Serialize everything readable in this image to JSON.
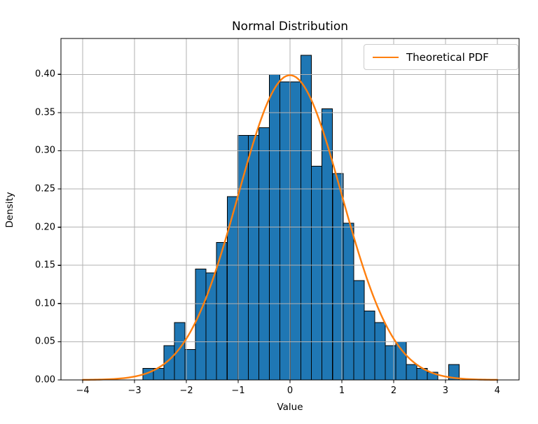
{
  "chart_data": {
    "type": "bar",
    "subtype": "histogram_with_pdf_overlay",
    "title": "Normal Distribution",
    "xlabel": "Value",
    "ylabel": "Density",
    "xlim": [
      -4.42,
      4.42
    ],
    "ylim": [
      0,
      0.447
    ],
    "grid": true,
    "xticks": {
      "values": [
        -4,
        -3,
        -2,
        -1,
        0,
        1,
        2,
        3,
        4
      ],
      "labels": [
        "−4",
        "−3",
        "−2",
        "−1",
        "0",
        "1",
        "2",
        "3",
        "4"
      ]
    },
    "yticks": {
      "values": [
        0.0,
        0.05,
        0.1,
        0.15,
        0.2,
        0.25,
        0.3,
        0.35,
        0.4
      ],
      "labels": [
        "0.00",
        "0.05",
        "0.10",
        "0.15",
        "0.20",
        "0.25",
        "0.30",
        "0.35",
        "0.40"
      ]
    },
    "histogram": {
      "bin_start": -2.84,
      "bin_width": 0.2034,
      "densities": [
        0.015,
        0.015,
        0.045,
        0.075,
        0.04,
        0.145,
        0.14,
        0.18,
        0.24,
        0.32,
        0.32,
        0.33,
        0.4,
        0.39,
        0.39,
        0.425,
        0.28,
        0.355,
        0.27,
        0.205,
        0.13,
        0.09,
        0.075,
        0.045,
        0.05,
        0.02,
        0.015,
        0.01,
        0.0,
        0.02
      ]
    },
    "curve": {
      "name": "Theoretical PDF",
      "distribution": "standard_normal",
      "mean": 0,
      "std": 1,
      "x_min": -4,
      "x_max": 4,
      "peak_density": 0.3989
    },
    "legend": {
      "position": "upper right",
      "entries": [
        "Theoretical PDF"
      ]
    },
    "colors": {
      "bar_fill": "#1f77b4",
      "bar_edge": "#000000",
      "curve": "#ff7f0e",
      "grid": "#b2b2b2",
      "spine": "#000000",
      "text": "#000000",
      "background": "#ffffff",
      "legend_border": "#cccccc"
    }
  }
}
